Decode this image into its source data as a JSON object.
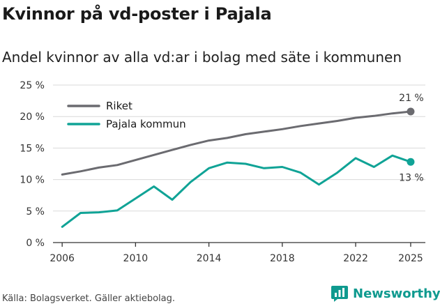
{
  "header": {
    "title": "Kvinnor på vd-poster i Pajala",
    "subtitle": "Andel kvinnor av alla vd:ar i bolag med säte i kommunen"
  },
  "footer": {
    "source": "Källa: Bolagsverket. Gäller aktiebolag.",
    "brand": "Newsworthy"
  },
  "colors": {
    "riket": "#6b6b70",
    "pajala": "#10a396",
    "grid": "#d9d9d9",
    "axis": "#333333",
    "brand": "#0f9a8f"
  },
  "chart_data": {
    "type": "line",
    "title": "Kvinnor på vd-poster i Pajala",
    "subtitle": "Andel kvinnor av alla vd:ar i bolag med säte i kommunen",
    "xlabel": "",
    "ylabel": "",
    "xlim": [
      2005.5,
      2025.8
    ],
    "ylim": [
      0,
      25
    ],
    "x_ticks": [
      2006,
      2010,
      2014,
      2018,
      2022,
      2025
    ],
    "y_ticks": [
      0,
      5,
      10,
      15,
      20,
      25
    ],
    "y_tick_labels": [
      "0 %",
      "5 %",
      "10 %",
      "15 %",
      "20 %",
      "25 %"
    ],
    "grid": true,
    "legend_position": "top-left",
    "categories": [
      2006,
      2007,
      2008,
      2009,
      2010,
      2011,
      2012,
      2013,
      2014,
      2015,
      2016,
      2017,
      2018,
      2019,
      2020,
      2021,
      2022,
      2023,
      2024,
      2025
    ],
    "series": [
      {
        "name": "Riket",
        "values": [
          10.8,
          11.3,
          11.9,
          12.3,
          13.1,
          13.9,
          14.7,
          15.5,
          16.2,
          16.6,
          17.2,
          17.6,
          18.0,
          18.5,
          18.9,
          19.3,
          19.8,
          20.1,
          20.5,
          20.8
        ],
        "end_label": "21 %"
      },
      {
        "name": "Pajala kommun",
        "values": [
          2.5,
          4.7,
          4.8,
          5.1,
          7.0,
          8.9,
          6.8,
          9.6,
          11.8,
          12.7,
          12.5,
          11.8,
          12.0,
          11.1,
          9.2,
          11.1,
          13.4,
          12.0,
          13.8,
          12.8
        ],
        "end_label": "13 %"
      }
    ]
  }
}
